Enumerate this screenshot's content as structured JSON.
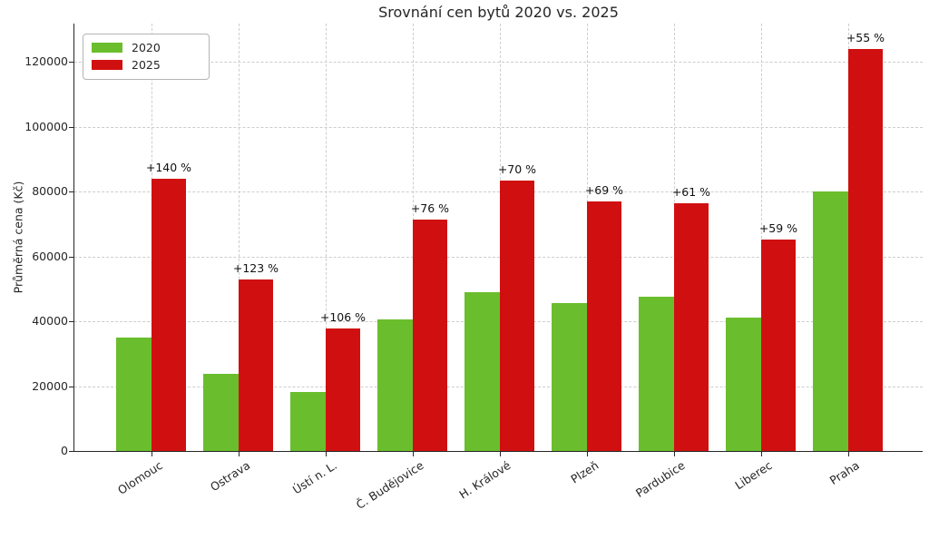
{
  "chart_data": {
    "type": "bar",
    "title": "Srovnání cen bytů 2020 vs. 2025",
    "xlabel": "",
    "ylabel": "Průměrná cena (Kč)",
    "categories": [
      "Olomouc",
      "Ostrava",
      "Ústí n. L.",
      "Č. Budějovice",
      "H. Králové",
      "Plzeň",
      "Pardubice",
      "Liberec",
      "Praha"
    ],
    "series": [
      {
        "name": "2020",
        "color": "#6abe2d",
        "values": [
          35000,
          23700,
          18300,
          40500,
          49000,
          45500,
          47500,
          41000,
          80000
        ]
      },
      {
        "name": "2025",
        "color": "#d01010",
        "values": [
          84000,
          52800,
          37700,
          71300,
          83300,
          76900,
          76500,
          65200,
          124000
        ]
      }
    ],
    "annotations": [
      "+140 %",
      "+123 %",
      "+106 %",
      "+76 %",
      "+70 %",
      "+69 %",
      "+61 %",
      "+59 %",
      "+55 %"
    ],
    "y_ticks": [
      0,
      20000,
      40000,
      60000,
      80000,
      100000,
      120000
    ],
    "ylim": [
      0,
      131750
    ],
    "grid": "dashed, horizontal and vertical",
    "legend_position": "upper left",
    "colors": {
      "text": "#262626",
      "grid": "#cdcdcd",
      "spine": "#262626",
      "background": "#ffffff"
    }
  }
}
